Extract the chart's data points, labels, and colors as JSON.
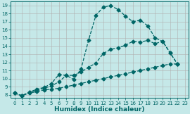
{
  "xlabel": "Humidex (Indice chaleur)",
  "background_color": "#c5e8e8",
  "grid_color": "#b0b0b0",
  "line_color": "#006666",
  "xlim": [
    -0.5,
    23.5
  ],
  "ylim": [
    7.6,
    19.5
  ],
  "xticks": [
    0,
    1,
    2,
    3,
    4,
    5,
    6,
    7,
    8,
    9,
    10,
    11,
    12,
    13,
    14,
    15,
    16,
    17,
    18,
    19,
    20,
    21,
    22,
    23
  ],
  "yticks": [
    8,
    9,
    10,
    11,
    12,
    13,
    14,
    15,
    16,
    17,
    18,
    19
  ],
  "line1_x": [
    0,
    1,
    2,
    3,
    4,
    5,
    6,
    7,
    8,
    9,
    10,
    11,
    12,
    13,
    14,
    15,
    16,
    17,
    18,
    19,
    20,
    21,
    22
  ],
  "line1_y": [
    8.2,
    7.9,
    8.3,
    8.7,
    8.9,
    9.4,
    10.5,
    10.4,
    9.9,
    11.2,
    14.7,
    17.8,
    18.8,
    19.0,
    18.5,
    17.7,
    17.0,
    17.2,
    16.5,
    15.0,
    14.6,
    13.2,
    11.8
  ],
  "line2_x": [
    0,
    1,
    2,
    3,
    4,
    5,
    6,
    7,
    8,
    9,
    10,
    11,
    12,
    13,
    14,
    15,
    16,
    17,
    18,
    19,
    20,
    21,
    22
  ],
  "line2_y": [
    8.2,
    7.9,
    8.3,
    8.6,
    8.8,
    9.1,
    9.6,
    10.4,
    10.4,
    10.8,
    11.4,
    11.9,
    13.1,
    13.6,
    13.8,
    14.1,
    14.6,
    14.5,
    14.7,
    14.3,
    14.6,
    13.2,
    11.8
  ],
  "line3_x": [
    0,
    1,
    2,
    3,
    4,
    5,
    6,
    7,
    8,
    9,
    10,
    11,
    12,
    13,
    14,
    15,
    16,
    17,
    18,
    19,
    20,
    21,
    22
  ],
  "line3_y": [
    8.2,
    7.9,
    8.2,
    8.4,
    8.6,
    8.7,
    8.8,
    9.0,
    9.2,
    9.4,
    9.6,
    9.8,
    10.0,
    10.2,
    10.4,
    10.6,
    10.8,
    11.0,
    11.2,
    11.4,
    11.6,
    11.8,
    11.8
  ],
  "markersize": 2.5,
  "linewidth": 0.9,
  "xlabel_fontsize": 6.5,
  "tick_fontsize": 5.0
}
